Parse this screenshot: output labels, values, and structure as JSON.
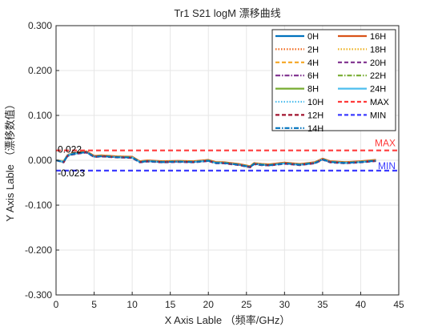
{
  "chart_data": {
    "type": "line",
    "title": "Tr1 S21 logM  漂移曲线",
    "xlabel": "X Axis Lable （频率/GHz）",
    "ylabel": "Y Axis Lable （漂移数值）",
    "xlim": [
      0,
      45
    ],
    "ylim": [
      -0.3,
      0.3
    ],
    "x_ticks": [
      "0",
      "5",
      "10",
      "15",
      "20",
      "25",
      "30",
      "35",
      "40",
      "45"
    ],
    "y_ticks": [
      "0.300",
      "0.200",
      "0.100",
      "0.000",
      "-0.100",
      "-0.200",
      "-0.300"
    ],
    "grid": true,
    "legend_position": "top-right",
    "x": [
      0,
      1,
      1.5,
      2,
      3,
      4,
      5,
      6,
      8,
      10,
      11,
      12,
      14,
      16,
      18,
      20,
      21,
      22,
      24,
      25.5,
      26,
      27,
      28,
      30,
      32,
      34,
      35,
      36,
      38,
      40,
      42
    ],
    "series": [
      {
        "name": "0H",
        "color": "#0072BD",
        "dash": "solid",
        "values": [
          0,
          -0.004,
          0.01,
          0.013,
          0.016,
          0.018,
          0.008,
          0.009,
          0.007,
          0.006,
          -0.004,
          -0.002,
          -0.004,
          -0.003,
          -0.004,
          -0.001,
          -0.006,
          -0.006,
          -0.01,
          -0.015,
          -0.008,
          -0.01,
          -0.011,
          -0.007,
          -0.01,
          -0.006,
          0.002,
          -0.004,
          -0.006,
          -0.004,
          -0.001
        ]
      },
      {
        "name": "16H",
        "color": "#D95319",
        "dash": "solid",
        "values": [
          0,
          -0.002,
          0.012,
          0.015,
          0.018,
          0.02,
          0.01,
          0.011,
          0.009,
          0.008,
          -0.002,
          0.0,
          -0.002,
          -0.001,
          -0.002,
          0.001,
          -0.004,
          -0.004,
          -0.008,
          -0.013,
          -0.006,
          -0.008,
          -0.009,
          -0.005,
          -0.008,
          -0.004,
          0.004,
          -0.002,
          -0.004,
          -0.002,
          0.001
        ]
      },
      {
        "name": "2H",
        "color": "#F0691E",
        "dash": "dotted",
        "values": [
          0,
          -0.003,
          0.011,
          0.014,
          0.017,
          0.019,
          0.009,
          0.01,
          0.008,
          0.007,
          -0.003,
          -0.001,
          -0.003,
          -0.002,
          -0.003,
          0.0,
          -0.005,
          -0.005,
          -0.009,
          -0.014,
          -0.007,
          -0.009,
          -0.01,
          -0.006,
          -0.009,
          -0.005,
          0.003,
          -0.003,
          -0.005,
          -0.003,
          0.0
        ]
      },
      {
        "name": "18H",
        "color": "#EDB120",
        "dash": "dotted",
        "values": [
          0,
          -0.001,
          0.012,
          0.015,
          0.017,
          0.019,
          0.009,
          0.01,
          0.008,
          0.007,
          -0.003,
          -0.001,
          -0.003,
          -0.002,
          -0.003,
          0.0,
          -0.005,
          -0.005,
          -0.009,
          -0.014,
          -0.007,
          -0.009,
          -0.01,
          -0.006,
          -0.009,
          -0.005,
          0.003,
          -0.003,
          -0.005,
          -0.003,
          0.0
        ]
      },
      {
        "name": "4H",
        "color": "#F5A623",
        "dash": "dashed",
        "values": [
          0,
          -0.004,
          0.01,
          0.014,
          0.016,
          0.018,
          0.009,
          0.01,
          0.008,
          0.007,
          -0.003,
          -0.001,
          -0.004,
          -0.003,
          -0.004,
          -0.001,
          -0.006,
          -0.005,
          -0.01,
          -0.015,
          -0.008,
          -0.01,
          -0.011,
          -0.007,
          -0.01,
          -0.006,
          0.002,
          -0.004,
          -0.006,
          -0.004,
          -0.001
        ]
      },
      {
        "name": "20H",
        "color": "#7E2F8E",
        "dash": "dashed",
        "values": [
          0,
          -0.005,
          0.009,
          0.012,
          0.015,
          0.017,
          0.007,
          0.008,
          0.006,
          0.005,
          -0.005,
          -0.003,
          -0.005,
          -0.004,
          -0.005,
          -0.002,
          -0.007,
          -0.007,
          -0.011,
          -0.016,
          -0.009,
          -0.011,
          -0.012,
          -0.008,
          -0.011,
          -0.007,
          0.001,
          -0.005,
          -0.007,
          -0.005,
          -0.002
        ]
      },
      {
        "name": "6H",
        "color": "#7E2F8E",
        "dash": "dashdot",
        "values": [
          0,
          -0.003,
          0.011,
          0.013,
          0.016,
          0.018,
          0.008,
          0.009,
          0.007,
          0.006,
          -0.004,
          -0.002,
          -0.004,
          -0.003,
          -0.004,
          -0.001,
          -0.006,
          -0.006,
          -0.01,
          -0.015,
          -0.008,
          -0.01,
          -0.011,
          -0.007,
          -0.01,
          -0.006,
          0.002,
          -0.004,
          -0.006,
          -0.004,
          -0.001
        ]
      },
      {
        "name": "22H",
        "color": "#77AC30",
        "dash": "dashdot",
        "values": [
          0,
          -0.002,
          0.011,
          0.014,
          0.017,
          0.019,
          0.009,
          0.01,
          0.008,
          0.007,
          -0.003,
          -0.001,
          -0.003,
          -0.002,
          -0.003,
          0.0,
          -0.005,
          -0.005,
          -0.009,
          -0.014,
          -0.007,
          -0.009,
          -0.01,
          -0.006,
          -0.009,
          -0.005,
          0.003,
          -0.003,
          -0.005,
          -0.003,
          0.0
        ]
      },
      {
        "name": "8H",
        "color": "#77AC30",
        "dash": "solid",
        "values": [
          0,
          -0.004,
          0.01,
          0.013,
          0.016,
          0.018,
          0.008,
          0.009,
          0.007,
          0.006,
          -0.004,
          -0.002,
          -0.004,
          -0.003,
          -0.004,
          -0.001,
          -0.006,
          -0.006,
          -0.01,
          -0.015,
          -0.008,
          -0.01,
          -0.011,
          -0.007,
          -0.01,
          -0.006,
          0.002,
          -0.004,
          -0.006,
          -0.004,
          -0.001
        ]
      },
      {
        "name": "24H",
        "color": "#4DBEEE",
        "dash": "solid",
        "values": [
          0,
          -0.003,
          0.011,
          0.014,
          0.016,
          0.018,
          0.008,
          0.009,
          0.007,
          0.006,
          -0.004,
          -0.002,
          -0.004,
          -0.003,
          -0.004,
          -0.001,
          -0.006,
          -0.006,
          -0.01,
          -0.015,
          -0.008,
          -0.01,
          -0.011,
          -0.007,
          -0.01,
          -0.006,
          0.002,
          -0.004,
          -0.006,
          -0.004,
          -0.001
        ]
      },
      {
        "name": "10H",
        "color": "#4DBEEE",
        "dash": "dotted",
        "values": [
          0,
          -0.004,
          0.01,
          0.013,
          0.016,
          0.018,
          0.008,
          0.009,
          0.007,
          0.006,
          -0.004,
          -0.002,
          -0.004,
          -0.003,
          -0.004,
          -0.001,
          -0.006,
          -0.006,
          -0.01,
          -0.015,
          -0.008,
          -0.01,
          -0.011,
          -0.007,
          -0.01,
          -0.006,
          0.002,
          -0.004,
          -0.006,
          -0.004,
          -0.001
        ]
      },
      {
        "name": "12H",
        "color": "#A2142F",
        "dash": "dashed",
        "values": [
          0,
          -0.004,
          0.01,
          0.013,
          0.016,
          0.018,
          0.008,
          0.009,
          0.007,
          0.006,
          -0.004,
          -0.002,
          -0.004,
          -0.003,
          -0.004,
          -0.001,
          -0.006,
          -0.006,
          -0.01,
          -0.015,
          -0.008,
          -0.01,
          -0.011,
          -0.007,
          -0.01,
          -0.006,
          0.002,
          -0.004,
          -0.006,
          -0.004,
          -0.001
        ]
      },
      {
        "name": "14H",
        "color": "#0072BD",
        "dash": "dashdot",
        "values": [
          0,
          -0.004,
          0.01,
          0.013,
          0.016,
          0.018,
          0.008,
          0.009,
          0.007,
          0.006,
          -0.004,
          -0.002,
          -0.004,
          -0.003,
          -0.004,
          -0.001,
          -0.006,
          -0.006,
          -0.01,
          -0.015,
          -0.008,
          -0.01,
          -0.011,
          -0.007,
          -0.01,
          -0.006,
          0.002,
          -0.004,
          -0.006,
          -0.004,
          -0.001
        ]
      }
    ],
    "limits": [
      {
        "name": "MAX",
        "value": 0.022,
        "value_label": "0.022",
        "color": "#FF3B3B",
        "dash": "dashed"
      },
      {
        "name": "MIN",
        "value": -0.023,
        "value_label": "-0.023",
        "color": "#3B3BFF",
        "dash": "dashed"
      }
    ],
    "legend_order": [
      "0H",
      "16H",
      "2H",
      "18H",
      "4H",
      "20H",
      "6H",
      "22H",
      "8H",
      "24H",
      "10H",
      "MAX",
      "12H",
      "MIN",
      "14H"
    ]
  }
}
